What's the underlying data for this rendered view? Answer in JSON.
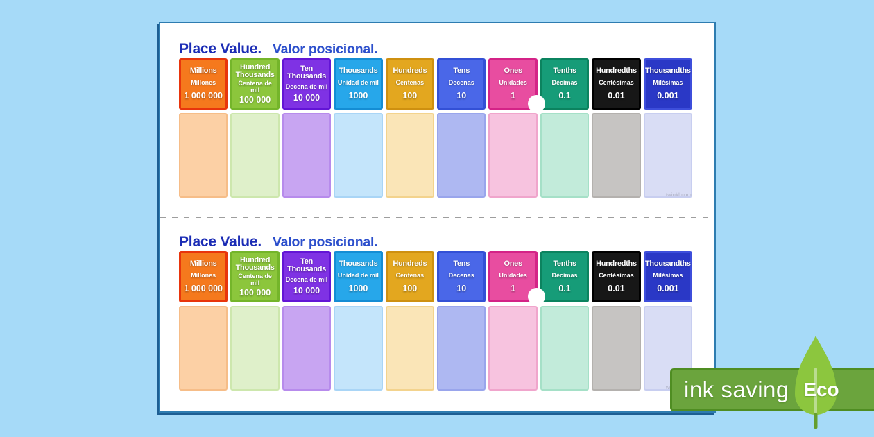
{
  "page_background": "#A6DAF8",
  "sheet": {
    "background": "#FFFFFF",
    "border_color": "#2E7CB0",
    "shadow_color": "#1D5E93"
  },
  "cut_line_color": "#9E9E9E",
  "title": {
    "en": "Place Value.",
    "es": "Valor posicional.",
    "en_color": "#1B2CB5",
    "es_color": "#2C4FCC"
  },
  "watermark": "twinkl.com",
  "decimal_point": {
    "color": "#FFFFFF"
  },
  "columns": [
    {
      "id": "millions",
      "name_en": "Millions",
      "name_es": "Millones",
      "value": "1 000 000",
      "header_bg": "#F5791D",
      "header_border": "#E8350C",
      "body_bg": "#FCD0A5",
      "body_border": "#F6BD88"
    },
    {
      "id": "hundred-thousands",
      "name_en": "Hundred Thousands",
      "name_es": "Centena de mil",
      "value": "100 000",
      "header_bg": "#8CC63C",
      "header_border": "#74B52A",
      "body_bg": "#DFF0CA",
      "body_border": "#CDE7AD"
    },
    {
      "id": "ten-thousands",
      "name_en": "Ten Thousands",
      "name_es": "Decena de mil",
      "value": "10 000",
      "header_bg": "#7F32E4",
      "header_border": "#6315D6",
      "body_bg": "#C8A5F2",
      "body_border": "#B78BEC"
    },
    {
      "id": "thousands",
      "name_en": "Thousands",
      "name_es": "Unidad de mil",
      "value": "1000",
      "header_bg": "#27A7EA",
      "header_border": "#148DD4",
      "body_bg": "#C4E5FB",
      "body_border": "#A9D5F6"
    },
    {
      "id": "hundreds",
      "name_en": "Hundreds",
      "name_es": "Centenas",
      "value": "100",
      "header_bg": "#E3A71F",
      "header_border": "#CE9010",
      "body_bg": "#FAE5B7",
      "body_border": "#F3D38D"
    },
    {
      "id": "tens",
      "name_en": "Tens",
      "name_es": "Decenas",
      "value": "10",
      "header_bg": "#4A67E8",
      "header_border": "#3350D6",
      "body_bg": "#AEB8F2",
      "body_border": "#99A5EC"
    },
    {
      "id": "ones",
      "name_en": "Ones",
      "name_es": "Unidades",
      "value": "1",
      "header_bg": "#E84DA0",
      "header_border": "#D42387",
      "body_bg": "#F7C3DF",
      "body_border": "#F0A5CC"
    },
    {
      "id": "tenths",
      "name_en": "Tenths",
      "name_es": "Décimas",
      "value": "0.1",
      "header_bg": "#169C78",
      "header_border": "#0B835F",
      "body_bg": "#C2EBDA",
      "body_border": "#A5E0C7"
    },
    {
      "id": "hundredths",
      "name_en": "Hundredths",
      "name_es": "Centésimas",
      "value": "0.01",
      "header_bg": "#171717",
      "header_border": "#000000",
      "body_bg": "#C6C4C2",
      "body_border": "#B4B1AE"
    },
    {
      "id": "thousandths",
      "name_en": "Thousandths",
      "name_es": "Milésimas",
      "value": "0.001",
      "header_bg": "#2A38C6",
      "header_border": "#3D4EDB",
      "body_bg": "#D9DDF5",
      "body_border": "#C8CEF0"
    }
  ],
  "eco_banner": {
    "ink_label": "ink saving",
    "eco_label": "Eco",
    "background": "#6BA43D",
    "border_color": "#4F8D22",
    "leaf_color": "#8CC63E",
    "leaf_vein_color": "#BADC90",
    "stem_color": "#649E2F",
    "text_color": "#FFFFFF"
  }
}
